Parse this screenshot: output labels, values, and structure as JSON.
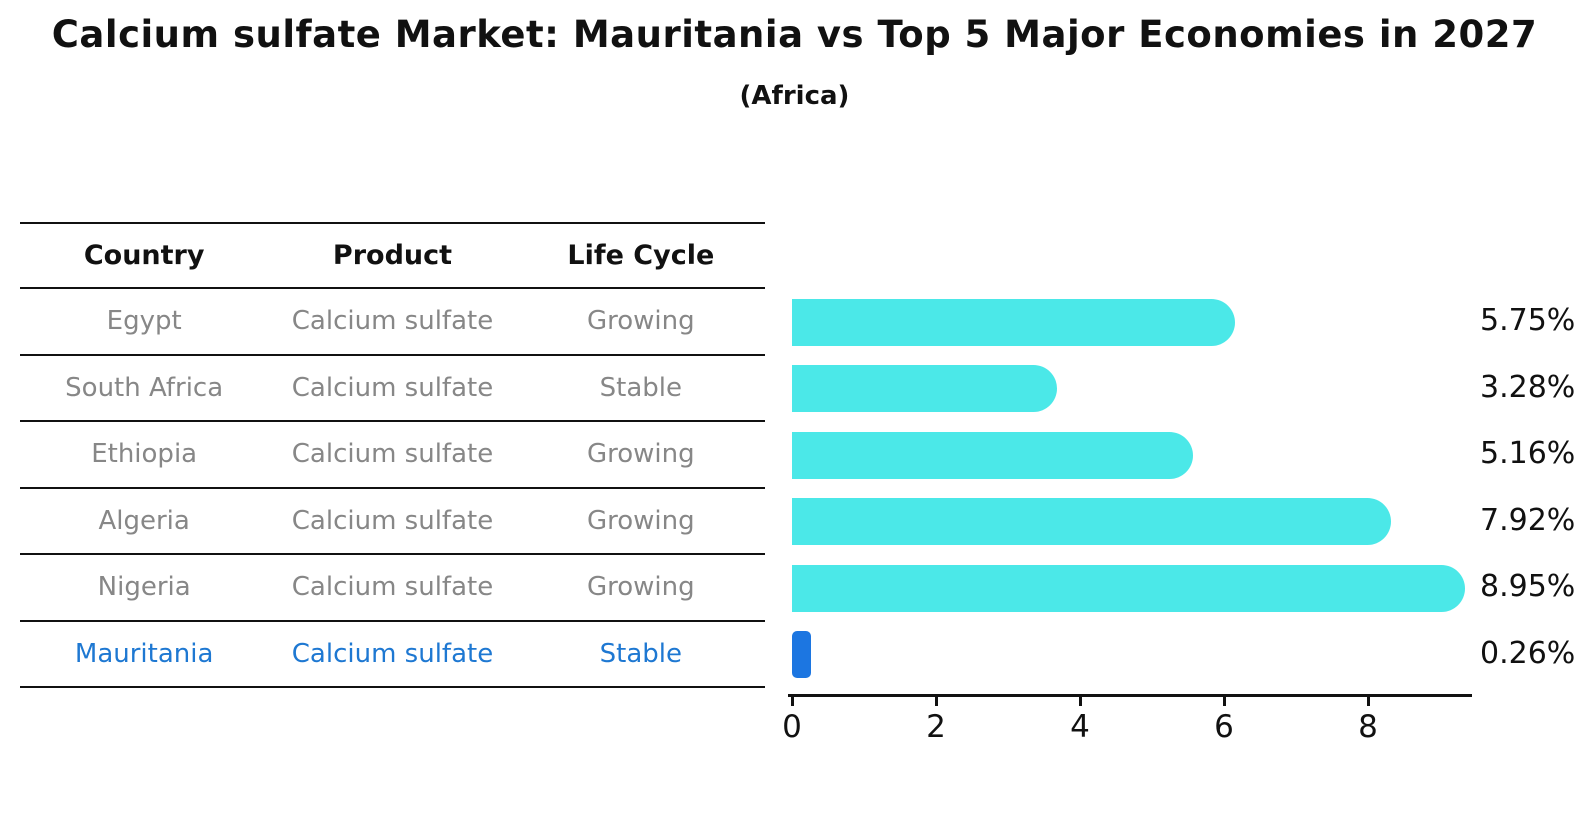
{
  "title": "Calcium sulfate Market: Mauritania vs Top 5 Major Economies in 2027",
  "subtitle": "(Africa)",
  "table": {
    "headers": [
      "Country",
      "Product",
      "Life Cycle"
    ]
  },
  "rows": [
    {
      "country": "Egypt",
      "product": "Calcium sulfate",
      "life_cycle": "Growing",
      "value": 5.75,
      "value_label": "5.75%",
      "highlighted": false
    },
    {
      "country": "South Africa",
      "product": "Calcium sulfate",
      "life_cycle": "Stable",
      "value": 3.28,
      "value_label": "3.28%",
      "highlighted": false
    },
    {
      "country": "Ethiopia",
      "product": "Calcium sulfate",
      "life_cycle": "Growing",
      "value": 5.16,
      "value_label": "5.16%",
      "highlighted": false
    },
    {
      "country": "Algeria",
      "product": "Calcium sulfate",
      "life_cycle": "Growing",
      "value": 7.92,
      "value_label": "7.92%",
      "highlighted": false
    },
    {
      "country": "Nigeria",
      "product": "Calcium sulfate",
      "life_cycle": "Growing",
      "value": 8.95,
      "value_label": "8.95%",
      "highlighted": false
    },
    {
      "country": "Mauritania",
      "product": "Calcium sulfate",
      "life_cycle": "Stable",
      "value": 0.26,
      "value_label": "0.26%",
      "highlighted": true
    }
  ],
  "chart_data": {
    "type": "bar",
    "orientation": "horizontal",
    "title": "Calcium sulfate Market: Mauritania vs Top 5 Major Economies in 2027",
    "subtitle": "(Africa)",
    "categories": [
      "Egypt",
      "South Africa",
      "Ethiopia",
      "Algeria",
      "Nigeria",
      "Mauritania"
    ],
    "values": [
      5.75,
      3.28,
      5.16,
      7.92,
      8.95,
      0.26
    ],
    "value_labels": [
      "5.75%",
      "3.28%",
      "5.16%",
      "7.92%",
      "8.95%",
      "0.26%"
    ],
    "xlabel": "",
    "ylabel": "",
    "xticks": [
      0,
      2,
      4,
      6,
      8
    ],
    "xlim": [
      0,
      9.45
    ],
    "grid": false,
    "legend": false,
    "highlight_index": 5
  },
  "colors": {
    "bar": "#4BE8E8",
    "highlight_bar": "#1C76E1",
    "highlight_text": "#1E78D2",
    "text": "#111111",
    "muted_text": "#878787"
  }
}
